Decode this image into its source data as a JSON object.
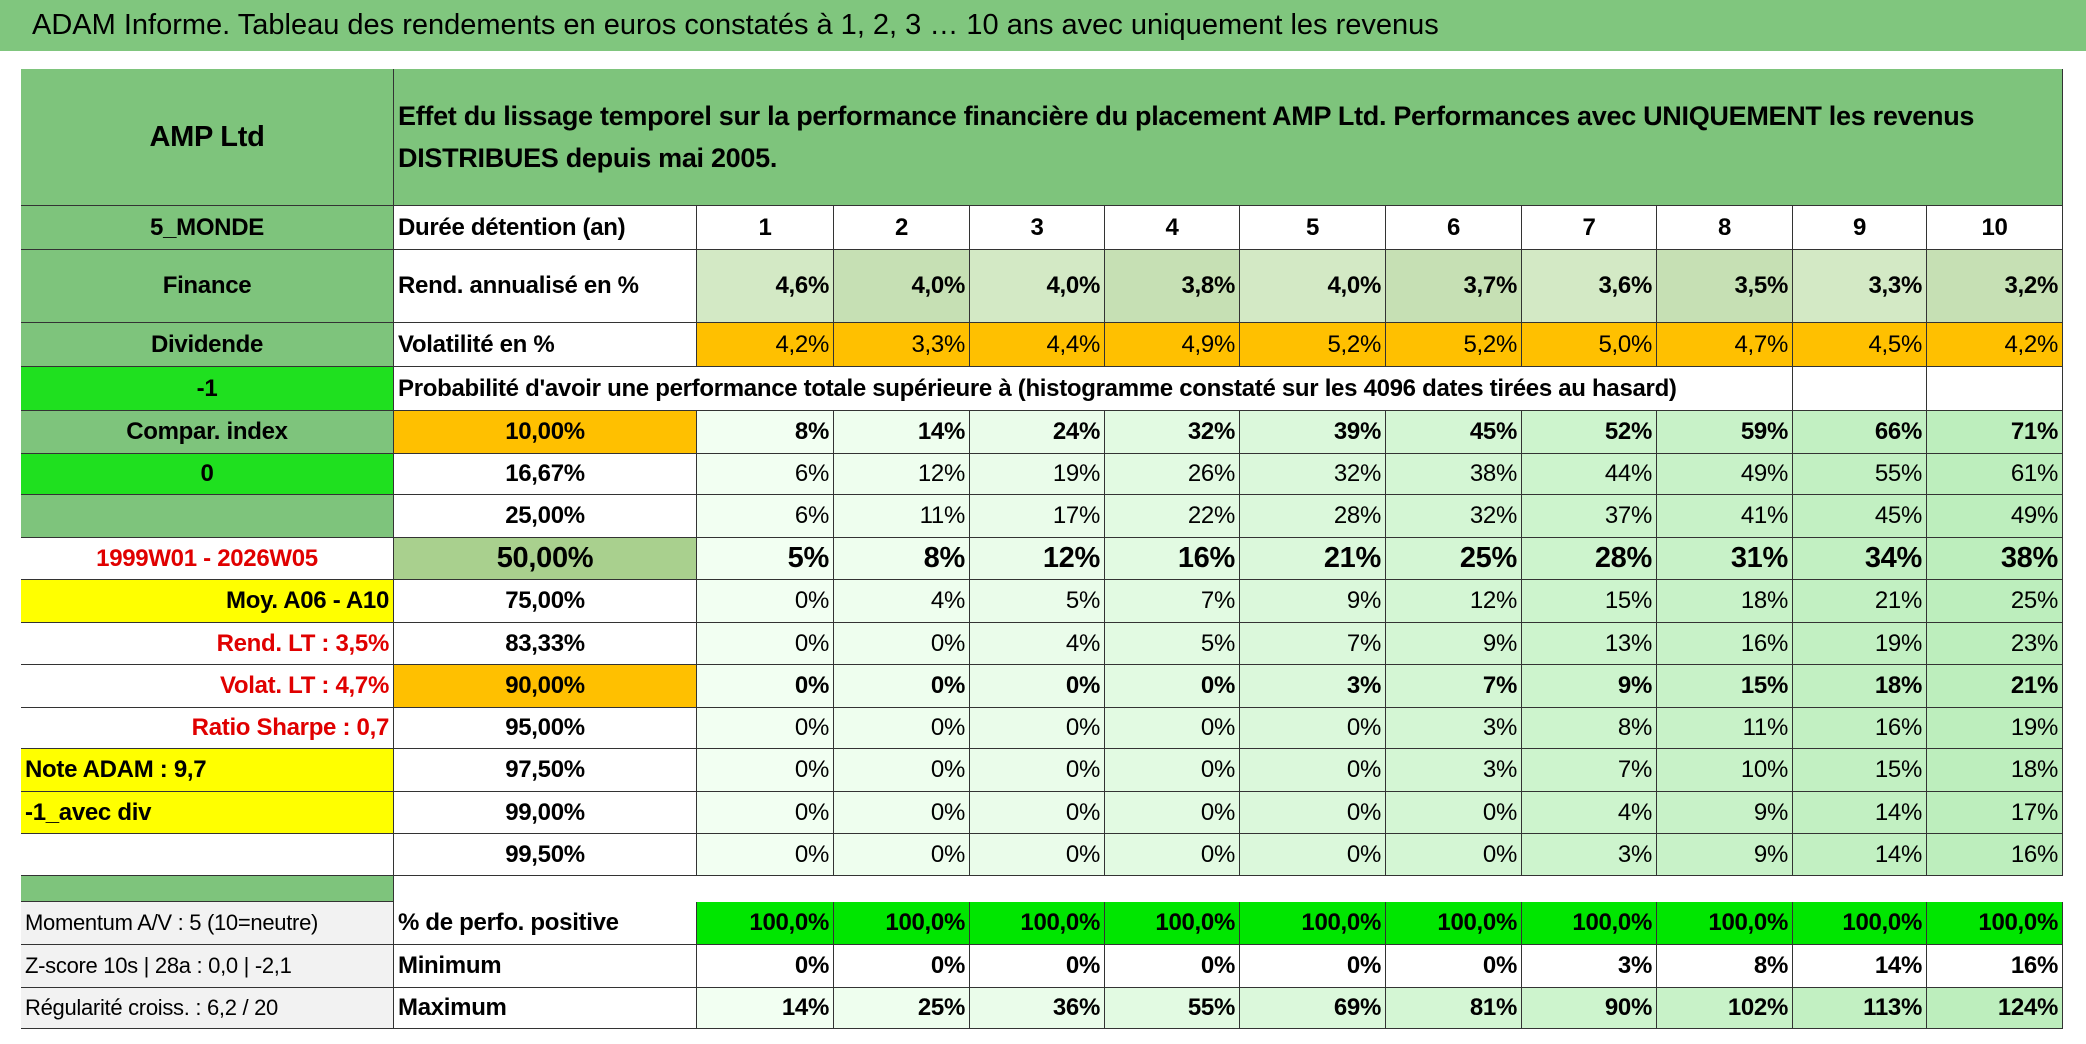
{
  "header": {
    "title": "ADAM Informe. Tableau des rendements en euros constatés à 1, 2, 3 … 10 ans avec uniquement les revenus"
  },
  "top": {
    "name": "AMP Ltd",
    "description": "Effet du lissage temporel sur la performance financière du placement AMP Ltd. Performances avec UNIQUEMENT les revenus DISTRIBUES depuis mai 2005."
  },
  "durations": {
    "left": "5_MONDE",
    "label": "Durée détention (an)",
    "years": [
      1,
      2,
      3,
      4,
      5,
      6,
      7,
      8,
      9,
      10
    ]
  },
  "return": {
    "left": "Finance",
    "label": "Rend. annualisé en %",
    "values": [
      "4,6%",
      "4,0%",
      "4,0%",
      "3,8%",
      "4,0%",
      "3,7%",
      "3,6%",
      "3,5%",
      "3,3%",
      "3,2%"
    ]
  },
  "volatility": {
    "left": "Dividende",
    "label": "Volatilité en %",
    "values": [
      "4,2%",
      "3,3%",
      "4,4%",
      "4,9%",
      "5,2%",
      "5,2%",
      "5,0%",
      "4,7%",
      "4,5%",
      "4,2%"
    ]
  },
  "probability": {
    "left": "-1",
    "label": "Probabilité d'avoir une performance totale supérieure à (histogramme constaté sur les 4096 dates tirées au hasard)"
  },
  "thresholds": [
    {
      "left": "Compar. index",
      "threshold": "10,00%",
      "values": [
        "8%",
        "14%",
        "24%",
        "32%",
        "39%",
        "45%",
        "52%",
        "59%",
        "66%",
        "71%"
      ]
    },
    {
      "left": "0",
      "threshold": "16,67%",
      "values": [
        "6%",
        "12%",
        "19%",
        "26%",
        "32%",
        "38%",
        "44%",
        "49%",
        "55%",
        "61%"
      ]
    },
    {
      "threshold": "25,00%",
      "values": [
        "6%",
        "11%",
        "17%",
        "22%",
        "28%",
        "32%",
        "37%",
        "41%",
        "45%",
        "49%"
      ]
    },
    {
      "left": "1999W01 - 2026W05",
      "threshold": "50,00%",
      "values": [
        "5%",
        "8%",
        "12%",
        "16%",
        "21%",
        "25%",
        "28%",
        "31%",
        "34%",
        "38%"
      ]
    },
    {
      "left": "Moy. A06 - A10",
      "threshold": "75,00%",
      "values": [
        "0%",
        "4%",
        "5%",
        "7%",
        "9%",
        "12%",
        "15%",
        "18%",
        "21%",
        "25%"
      ]
    },
    {
      "left": "Rend. LT :   3,5%",
      "threshold": "83,33%",
      "values": [
        "0%",
        "0%",
        "4%",
        "5%",
        "7%",
        "9%",
        "13%",
        "16%",
        "19%",
        "23%"
      ]
    },
    {
      "left": "Volat. LT :   4,7%",
      "threshold": "90,00%",
      "values": [
        "0%",
        "0%",
        "0%",
        "0%",
        "3%",
        "7%",
        "9%",
        "15%",
        "18%",
        "21%"
      ]
    },
    {
      "left": "Ratio Sharpe :   0,7",
      "threshold": "95,00%",
      "values": [
        "0%",
        "0%",
        "0%",
        "0%",
        "0%",
        "3%",
        "8%",
        "11%",
        "16%",
        "19%"
      ]
    },
    {
      "left": "Note ADAM : 9,7",
      "threshold": "97,50%",
      "values": [
        "0%",
        "0%",
        "0%",
        "0%",
        "0%",
        "3%",
        "7%",
        "10%",
        "15%",
        "18%"
      ]
    },
    {
      "left": "-1_avec div",
      "threshold": "99,00%",
      "values": [
        "0%",
        "0%",
        "0%",
        "0%",
        "0%",
        "0%",
        "4%",
        "9%",
        "14%",
        "17%"
      ]
    },
    {
      "threshold": "99,50%",
      "values": [
        "0%",
        "0%",
        "0%",
        "0%",
        "0%",
        "0%",
        "3%",
        "9%",
        "14%",
        "16%"
      ]
    }
  ],
  "summary": [
    {
      "left": "Momentum A/V : 5 (10=neutre)",
      "label": "% de perfo. positive",
      "values": [
        "100,0%",
        "100,0%",
        "100,0%",
        "100,0%",
        "100,0%",
        "100,0%",
        "100,0%",
        "100,0%",
        "100,0%",
        "100,0%"
      ]
    },
    {
      "left": "Z-score 10s | 28a : 0,0 | -2,1",
      "label": "Minimum",
      "values": [
        "0%",
        "0%",
        "0%",
        "0%",
        "0%",
        "0%",
        "3%",
        "8%",
        "14%",
        "16%"
      ]
    },
    {
      "left": "Régularité croiss. : 6,2 / 20",
      "label": "Maximum",
      "values": [
        "14%",
        "25%",
        "36%",
        "55%",
        "69%",
        "81%",
        "90%",
        "102%",
        "113%",
        "124%"
      ]
    }
  ]
}
